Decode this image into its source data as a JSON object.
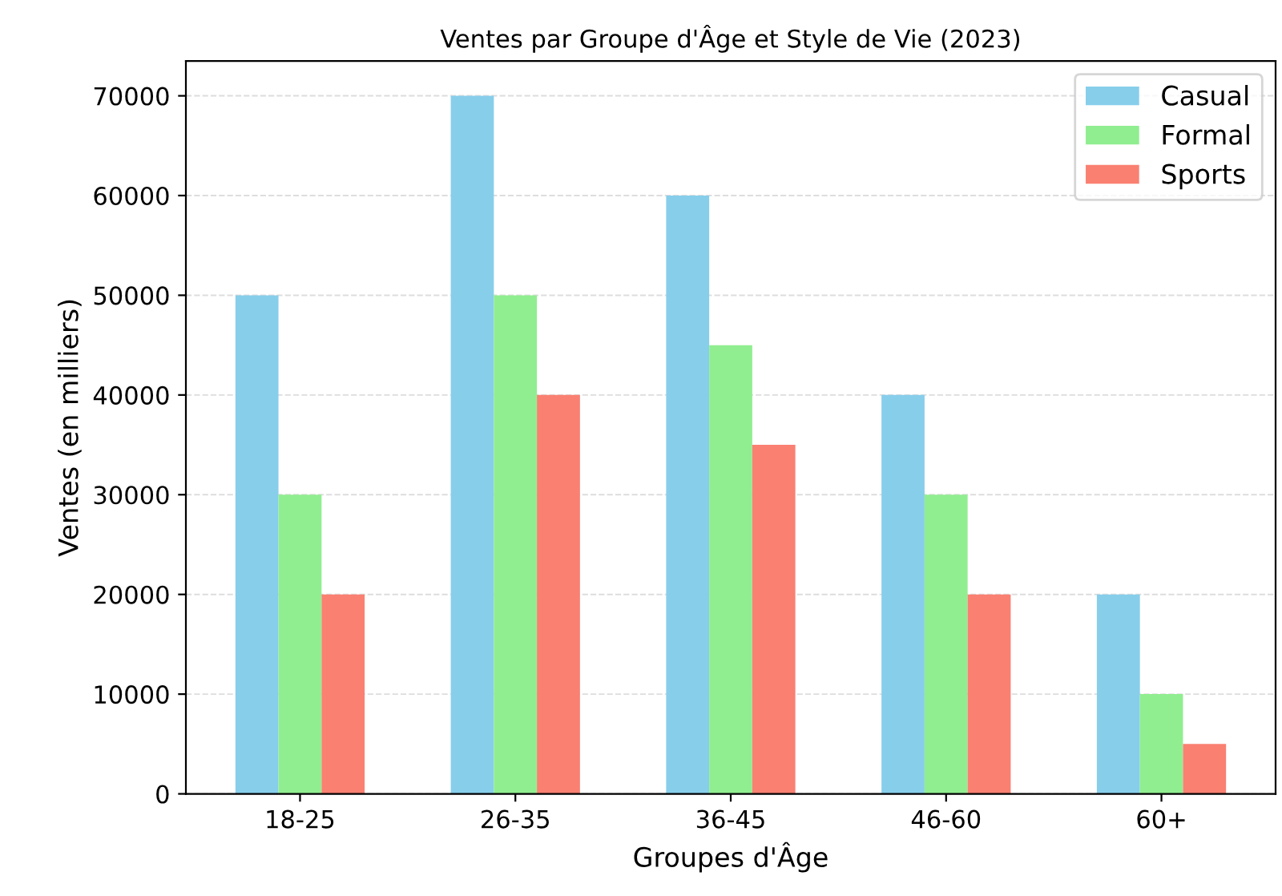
{
  "chart_data": {
    "type": "bar",
    "title": "Ventes par Groupe d'Âge et Style de Vie (2023)",
    "xlabel": "Groupes d'Âge",
    "ylabel": "Ventes (en milliers)",
    "categories": [
      "18-25",
      "26-35",
      "36-45",
      "46-60",
      "60+"
    ],
    "series": [
      {
        "name": "Casual",
        "color": "#87ceeb",
        "values": [
          50000,
          70000,
          60000,
          40000,
          20000
        ]
      },
      {
        "name": "Formal",
        "color": "#90ee90",
        "values": [
          30000,
          50000,
          45000,
          30000,
          10000
        ]
      },
      {
        "name": "Sports",
        "color": "#fa8072",
        "values": [
          20000,
          40000,
          35000,
          20000,
          5000
        ]
      }
    ],
    "ylim": [
      0,
      73500
    ],
    "yticks": [
      0,
      10000,
      20000,
      30000,
      40000,
      50000,
      60000,
      70000
    ],
    "grid": "y",
    "legend": "top right"
  }
}
